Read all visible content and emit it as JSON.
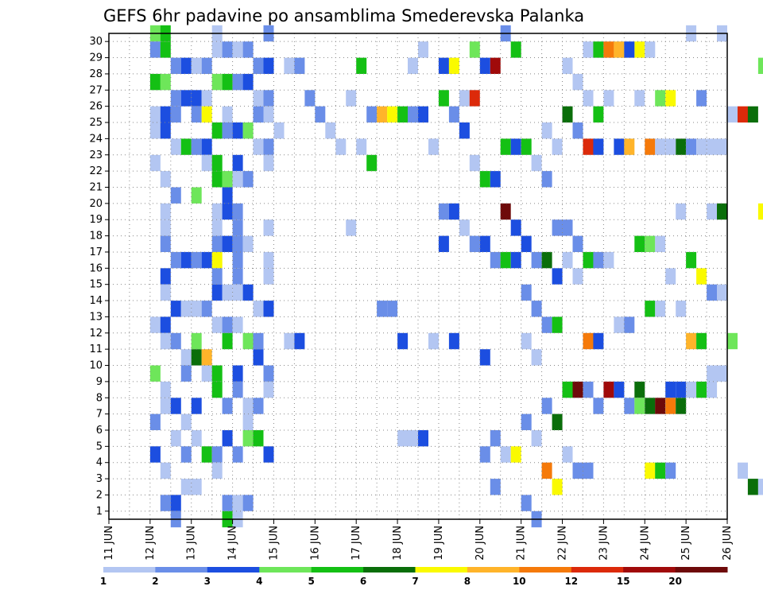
{
  "chart_data": {
    "type": "heatmap",
    "title": "GEFS 6hr padavine po ansamblima Smederevska Palanka",
    "x_tick_labels": [
      "11 JUN",
      "12 JUN",
      "13 JUN",
      "14 JUN",
      "15 JUN",
      "16 JUN",
      "17 JUN",
      "18 JUN",
      "19 JUN",
      "20 JUN",
      "21 JUN",
      "22 JUN",
      "23 JUN",
      "24 JUN",
      "25 JUN",
      "26 JUN"
    ],
    "y_tick_labels": [
      "1",
      "2",
      "3",
      "4",
      "5",
      "6",
      "7",
      "8",
      "9",
      "10",
      "11",
      "12",
      "13",
      "14",
      "15",
      "16",
      "17",
      "18",
      "19",
      "20",
      "21",
      "22",
      "23",
      "24",
      "25",
      "26",
      "27",
      "28",
      "29",
      "30"
    ],
    "x_steps_per_day": 4,
    "y_range": [
      0,
      30
    ],
    "grid": "dotted",
    "colorbar": {
      "colors": [
        "#b3c6f2",
        "#6a8ee8",
        "#1c4ee0",
        "#6ee65a",
        "#14c014",
        "#0a6e0a",
        "#fafa00",
        "#ffb42a",
        "#f57a0a",
        "#dc2a0a",
        "#a00a0a",
        "#6e0a0a"
      ],
      "boundaries": [
        "1",
        "2",
        "3",
        "4",
        "5",
        "6",
        "7",
        "8",
        "10",
        "12",
        "15",
        "20"
      ]
    },
    "cells": [
      [
        1,
        30,
        3
      ],
      [
        1,
        30,
        4
      ],
      [
        2,
        30,
        0
      ],
      [
        3,
        30,
        1
      ],
      [
        1,
        29,
        1
      ],
      [
        1,
        29,
        4
      ],
      [
        2,
        29,
        0
      ],
      [
        2,
        29,
        1
      ],
      [
        3,
        29,
        0
      ],
      [
        3,
        29,
        1
      ],
      [
        1,
        28,
        1
      ],
      [
        1,
        28,
        2
      ],
      [
        2,
        28,
        0
      ],
      [
        2,
        28,
        1
      ],
      [
        3,
        28,
        1
      ],
      [
        3,
        28,
        2
      ],
      [
        1,
        27,
        4
      ],
      [
        1,
        27,
        3
      ],
      [
        2,
        27,
        3
      ],
      [
        2,
        27,
        4
      ],
      [
        3,
        27,
        1
      ],
      [
        3,
        27,
        2
      ],
      [
        1,
        26,
        1
      ],
      [
        1,
        26,
        2
      ],
      [
        2,
        26,
        2
      ],
      [
        2,
        26,
        0
      ],
      [
        3,
        26,
        0
      ],
      [
        3,
        26,
        1
      ],
      [
        1,
        25,
        0
      ],
      [
        1,
        25,
        2
      ],
      [
        1,
        25,
        1
      ],
      [
        2,
        25,
        0
      ],
      [
        2,
        25,
        1
      ],
      [
        2,
        25,
        6
      ],
      [
        3,
        25,
        1
      ],
      [
        3,
        25,
        0
      ],
      [
        1,
        24,
        0
      ],
      [
        1,
        24,
        2
      ],
      [
        2,
        24,
        4
      ],
      [
        2,
        24,
        1
      ],
      [
        3,
        24,
        2
      ],
      [
        3,
        24,
        3
      ],
      [
        1,
        23,
        0
      ],
      [
        1,
        23,
        4
      ],
      [
        2,
        23,
        1
      ],
      [
        2,
        23,
        2
      ],
      [
        3,
        23,
        0
      ],
      [
        3,
        23,
        1
      ],
      [
        1,
        22,
        0
      ],
      [
        2,
        22,
        0
      ],
      [
        2,
        22,
        4
      ],
      [
        3,
        22,
        0
      ],
      [
        3,
        22,
        2
      ],
      [
        1,
        21,
        0
      ],
      [
        2,
        21,
        4
      ],
      [
        2,
        21,
        3
      ],
      [
        3,
        21,
        0
      ],
      [
        3,
        21,
        1
      ],
      [
        1,
        20,
        1
      ],
      [
        2,
        20,
        2
      ],
      [
        2,
        20,
        3
      ],
      [
        1,
        19,
        0
      ],
      [
        2,
        19,
        0
      ],
      [
        2,
        19,
        2
      ],
      [
        3,
        19,
        1
      ],
      [
        1,
        18,
        0
      ],
      [
        2,
        18,
        0
      ],
      [
        3,
        18,
        0
      ],
      [
        3,
        18,
        1
      ],
      [
        1,
        17,
        1
      ],
      [
        2,
        17,
        1
      ],
      [
        2,
        17,
        2
      ],
      [
        3,
        17,
        1
      ],
      [
        3,
        17,
        0
      ],
      [
        1,
        16,
        1
      ],
      [
        1,
        16,
        2
      ],
      [
        2,
        16,
        1
      ],
      [
        2,
        16,
        2
      ],
      [
        2,
        16,
        6
      ],
      [
        3,
        16,
        0
      ],
      [
        3,
        16,
        1
      ],
      [
        1,
        15,
        2
      ],
      [
        2,
        15,
        1
      ],
      [
        3,
        15,
        0
      ],
      [
        3,
        15,
        1
      ],
      [
        1,
        14,
        0
      ],
      [
        2,
        14,
        2
      ],
      [
        2,
        14,
        0
      ],
      [
        3,
        14,
        0
      ],
      [
        3,
        14,
        2
      ],
      [
        1,
        13,
        2
      ],
      [
        1,
        13,
        0
      ],
      [
        2,
        13,
        0
      ],
      [
        2,
        13,
        1
      ],
      [
        3,
        13,
        0
      ],
      [
        3,
        13,
        2
      ],
      [
        1,
        12,
        0
      ],
      [
        1,
        12,
        2
      ],
      [
        2,
        12,
        0
      ],
      [
        2,
        12,
        1
      ],
      [
        3,
        12,
        0
      ],
      [
        1,
        11,
        0
      ],
      [
        1,
        11,
        1
      ],
      [
        2,
        11,
        4
      ],
      [
        2,
        11,
        3
      ],
      [
        3,
        11,
        3
      ],
      [
        3,
        11,
        1
      ],
      [
        1,
        10,
        0
      ],
      [
        2,
        10,
        5
      ],
      [
        2,
        10,
        7
      ],
      [
        3,
        10,
        2
      ],
      [
        1,
        9,
        1
      ],
      [
        1,
        9,
        3
      ],
      [
        2,
        9,
        0
      ],
      [
        2,
        9,
        4
      ],
      [
        3,
        9,
        1
      ],
      [
        3,
        9,
        2
      ],
      [
        1,
        8,
        0
      ],
      [
        2,
        8,
        4
      ],
      [
        3,
        8,
        0
      ],
      [
        3,
        8,
        1
      ],
      [
        1,
        7,
        0
      ],
      [
        1,
        7,
        2
      ],
      [
        2,
        7,
        1
      ],
      [
        2,
        7,
        2
      ],
      [
        3,
        7,
        0
      ],
      [
        3,
        7,
        1
      ],
      [
        1,
        6,
        0
      ],
      [
        1,
        6,
        1
      ],
      [
        3,
        6,
        0
      ],
      [
        1,
        5,
        0
      ],
      [
        2,
        5,
        2
      ],
      [
        2,
        5,
        0
      ],
      [
        3,
        5,
        3
      ],
      [
        3,
        5,
        4
      ],
      [
        1,
        4,
        1
      ],
      [
        1,
        4,
        2
      ],
      [
        2,
        4,
        4
      ],
      [
        2,
        4,
        1
      ],
      [
        3,
        4,
        2
      ],
      [
        3,
        4,
        1
      ],
      [
        1,
        3,
        0
      ],
      [
        2,
        3,
        0
      ],
      [
        1,
        2,
        0
      ],
      [
        2,
        2,
        0
      ],
      [
        1,
        1,
        1
      ],
      [
        1,
        1,
        2
      ],
      [
        2,
        1,
        1
      ],
      [
        3,
        1,
        0
      ],
      [
        3,
        1,
        1
      ],
      [
        1,
        0,
        1
      ],
      [
        2,
        0,
        4
      ],
      [
        3,
        0,
        0
      ],
      [
        4,
        28,
        0
      ],
      [
        4,
        28,
        1
      ],
      [
        4,
        26,
        1
      ],
      [
        4,
        24,
        0
      ],
      [
        4,
        11,
        0
      ],
      [
        4,
        11,
        2
      ],
      [
        5,
        26,
        0
      ],
      [
        5,
        25,
        1
      ],
      [
        5,
        24,
        0
      ],
      [
        5,
        23,
        0
      ],
      [
        5,
        18,
        0
      ],
      [
        6,
        28,
        4
      ],
      [
        6,
        25,
        1
      ],
      [
        6,
        25,
        7
      ],
      [
        6,
        25,
        6
      ],
      [
        6,
        23,
        0
      ],
      [
        6,
        22,
        4
      ],
      [
        6,
        13,
        1
      ],
      [
        6,
        13,
        1
      ],
      [
        7,
        25,
        4
      ],
      [
        7,
        25,
        1
      ],
      [
        7,
        25,
        2
      ],
      [
        7,
        23,
        0
      ],
      [
        7,
        5,
        0
      ],
      [
        7,
        5,
        0
      ],
      [
        7,
        5,
        2
      ],
      [
        7,
        11,
        0
      ],
      [
        7,
        11,
        2
      ],
      [
        7,
        28,
        0
      ],
      [
        7,
        29,
        0
      ],
      [
        8,
        29,
        3
      ],
      [
        8,
        28,
        2
      ],
      [
        8,
        28,
        6
      ],
      [
        8,
        26,
        0
      ],
      [
        8,
        26,
        9
      ],
      [
        8,
        26,
        4
      ],
      [
        8,
        25,
        1
      ],
      [
        8,
        24,
        2
      ],
      [
        8,
        22,
        0
      ],
      [
        8,
        19,
        1
      ],
      [
        8,
        19,
        2
      ],
      [
        8,
        18,
        0
      ],
      [
        8,
        17,
        1
      ],
      [
        8,
        17,
        2
      ],
      [
        8,
        11,
        2
      ],
      [
        9,
        30,
        1
      ],
      [
        9,
        29,
        4
      ],
      [
        9,
        28,
        2
      ],
      [
        9,
        28,
        10
      ],
      [
        9,
        23,
        4
      ],
      [
        9,
        23,
        2
      ],
      [
        9,
        21,
        4
      ],
      [
        9,
        21,
        2
      ],
      [
        9,
        19,
        11
      ],
      [
        9,
        18,
        2
      ],
      [
        9,
        17,
        2
      ],
      [
        9,
        16,
        1
      ],
      [
        9,
        16,
        4
      ],
      [
        9,
        16,
        2
      ],
      [
        9,
        10,
        2
      ],
      [
        9,
        5,
        1
      ],
      [
        9,
        4,
        0
      ],
      [
        9,
        4,
        6
      ],
      [
        9,
        4,
        1
      ],
      [
        9,
        2,
        1
      ],
      [
        10,
        24,
        0
      ],
      [
        10,
        23,
        0
      ],
      [
        10,
        23,
        4
      ],
      [
        10,
        22,
        0
      ],
      [
        10,
        21,
        1
      ],
      [
        10,
        18,
        1
      ],
      [
        10,
        17,
        2
      ],
      [
        10,
        16,
        1
      ],
      [
        10,
        16,
        5
      ],
      [
        10,
        15,
        2
      ],
      [
        10,
        14,
        1
      ],
      [
        10,
        13,
        1
      ],
      [
        10,
        12,
        1
      ],
      [
        10,
        12,
        4
      ],
      [
        10,
        11,
        0
      ],
      [
        10,
        10,
        0
      ],
      [
        10,
        7,
        1
      ],
      [
        10,
        6,
        5
      ],
      [
        10,
        6,
        1
      ],
      [
        10,
        5,
        0
      ],
      [
        10,
        3,
        8
      ],
      [
        10,
        2,
        6
      ],
      [
        10,
        1,
        1
      ],
      [
        10,
        0,
        1
      ],
      [
        11,
        29,
        0
      ],
      [
        11,
        29,
        4
      ],
      [
        11,
        28,
        0
      ],
      [
        11,
        27,
        0
      ],
      [
        11,
        26,
        0
      ],
      [
        11,
        25,
        4
      ],
      [
        11,
        25,
        5
      ],
      [
        11,
        24,
        1
      ],
      [
        11,
        23,
        9
      ],
      [
        11,
        23,
        2
      ],
      [
        11,
        18,
        1
      ],
      [
        11,
        17,
        1
      ],
      [
        11,
        16,
        4
      ],
      [
        11,
        16,
        1
      ],
      [
        11,
        16,
        0
      ],
      [
        11,
        15,
        0
      ],
      [
        11,
        11,
        8
      ],
      [
        11,
        11,
        2
      ],
      [
        11,
        8,
        4
      ],
      [
        11,
        8,
        11
      ],
      [
        11,
        8,
        1
      ],
      [
        11,
        7,
        1
      ],
      [
        11,
        4,
        0
      ],
      [
        11,
        3,
        1
      ],
      [
        11,
        3,
        1
      ],
      [
        12,
        29,
        6
      ],
      [
        12,
        29,
        8
      ],
      [
        12,
        29,
        7
      ],
      [
        12,
        29,
        2
      ],
      [
        12,
        26,
        0
      ],
      [
        12,
        26,
        0
      ],
      [
        12,
        23,
        2
      ],
      [
        12,
        23,
        7
      ],
      [
        12,
        17,
        4
      ],
      [
        12,
        16,
        0
      ],
      [
        12,
        12,
        0
      ],
      [
        12,
        12,
        1
      ],
      [
        12,
        8,
        5
      ],
      [
        12,
        8,
        10
      ],
      [
        12,
        8,
        2
      ],
      [
        12,
        7,
        1
      ],
      [
        12,
        7,
        3
      ],
      [
        13,
        29,
        0
      ],
      [
        13,
        26,
        3
      ],
      [
        13,
        26,
        6
      ],
      [
        13,
        23,
        5
      ],
      [
        13,
        23,
        8
      ],
      [
        13,
        23,
        0
      ],
      [
        13,
        23,
        0
      ],
      [
        13,
        19,
        0
      ],
      [
        13,
        17,
        3
      ],
      [
        13,
        17,
        0
      ],
      [
        13,
        15,
        0
      ],
      [
        13,
        13,
        0
      ],
      [
        13,
        13,
        4
      ],
      [
        13,
        13,
        0
      ],
      [
        13,
        8,
        2
      ],
      [
        13,
        8,
        2
      ],
      [
        13,
        7,
        5
      ],
      [
        13,
        7,
        11
      ],
      [
        13,
        7,
        8
      ],
      [
        13,
        7,
        5
      ],
      [
        13,
        3,
        6
      ],
      [
        13,
        3,
        4
      ],
      [
        13,
        3,
        1
      ],
      [
        14,
        30,
        0
      ],
      [
        14,
        30,
        0
      ],
      [
        14,
        26,
        1
      ],
      [
        14,
        23,
        0
      ],
      [
        14,
        23,
        0
      ],
      [
        14,
        23,
        1
      ],
      [
        14,
        23,
        0
      ],
      [
        14,
        19,
        0
      ],
      [
        14,
        19,
        5
      ],
      [
        14,
        16,
        4
      ],
      [
        14,
        15,
        6
      ],
      [
        14,
        14,
        1
      ],
      [
        14,
        14,
        0
      ],
      [
        14,
        11,
        7
      ],
      [
        14,
        11,
        4
      ],
      [
        14,
        9,
        0
      ],
      [
        14,
        9,
        0
      ],
      [
        14,
        8,
        0
      ],
      [
        14,
        8,
        4
      ],
      [
        14,
        8,
        0
      ],
      [
        15,
        28,
        3
      ],
      [
        15,
        25,
        0
      ],
      [
        15,
        25,
        9
      ],
      [
        15,
        25,
        5
      ],
      [
        15,
        19,
        6
      ],
      [
        15,
        11,
        3
      ],
      [
        15,
        3,
        0
      ],
      [
        15,
        2,
        5
      ],
      [
        15,
        2,
        0
      ]
    ]
  }
}
